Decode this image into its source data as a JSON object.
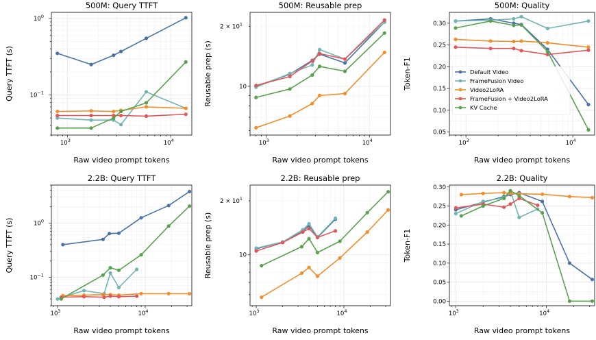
{
  "chart_data": [
    {
      "type": "line",
      "title": "500M: Query TTFT",
      "xlabel": "Raw video prompt tokens",
      "ylabel": "Query TTFT (s)",
      "xscale": "log",
      "yscale": "log",
      "xlim": [
        700,
        16000
      ],
      "ylim": [
        0.03,
        1.2
      ],
      "xticks": [
        {
          "v": 1000,
          "label": "10",
          "exp": "3"
        },
        {
          "v": 10000,
          "label": "10",
          "exp": "4"
        }
      ],
      "yticks": [
        {
          "v": 0.1,
          "label": "10",
          "exp": "−1"
        },
        {
          "v": 1,
          "label": "10",
          "exp": "0"
        }
      ],
      "grid": true,
      "series": [
        {
          "name": "Default Video",
          "color": "#4a72a6",
          "x": [
            800,
            1700,
            2800,
            3300,
            5800,
            14000
          ],
          "y": [
            0.35,
            0.25,
            0.33,
            0.37,
            0.55,
            1.02
          ]
        },
        {
          "name": "FrameFusion Video",
          "color": "#72b4b4",
          "x": [
            800,
            1700,
            2800,
            3300,
            5800,
            14000
          ],
          "y": [
            0.05,
            0.047,
            0.047,
            0.041,
            0.11,
            0.067
          ]
        },
        {
          "name": "Video2LoRA",
          "color": "#f28e2b",
          "x": [
            800,
            1700,
            2800,
            3300,
            5800,
            14000
          ],
          "y": [
            0.061,
            0.062,
            0.061,
            0.063,
            0.07,
            0.067
          ]
        },
        {
          "name": "FrameFusion + Video2LoRA",
          "color": "#e15759",
          "x": [
            800,
            1700,
            2800,
            3300,
            5800,
            14000
          ],
          "y": [
            0.054,
            0.054,
            0.054,
            0.054,
            0.053,
            0.056
          ]
        },
        {
          "name": "KV Cache",
          "color": "#59a14f",
          "x": [
            800,
            1700,
            2800,
            3300,
            5800,
            14000
          ],
          "y": [
            0.037,
            0.037,
            0.05,
            0.061,
            0.079,
            0.27
          ]
        }
      ]
    },
    {
      "type": "line",
      "title": "500M: Reusable prep",
      "xlabel": "Raw video prompt tokens",
      "ylabel": "Reusable prep (s)",
      "xscale": "log",
      "yscale": "log",
      "xlim": [
        700,
        16000
      ],
      "ylim": [
        5.7,
        23.5
      ],
      "xticks": [
        {
          "v": 1000,
          "label": "10",
          "exp": "3"
        },
        {
          "v": 10000,
          "label": "10",
          "exp": "4"
        }
      ],
      "yticks": [
        {
          "v": 10,
          "label": "10",
          "exp": ""
        },
        {
          "v": 20,
          "label": "2 × 10",
          "exp": "1"
        }
      ],
      "grid": true,
      "series": [
        {
          "name": "Default Video",
          "color": "#4a72a6",
          "x": [
            800,
            1700,
            2800,
            3300,
            5800,
            14000
          ],
          "y": [
            10,
            11.5,
            13.5,
            14.5,
            13.1,
            21
          ]
        },
        {
          "name": "FrameFusion Video",
          "color": "#72b4b4",
          "x": [
            800,
            1700,
            2800,
            3300,
            5800,
            14000
          ],
          "y": [
            9.9,
            11.6,
            12.8,
            15.3,
            13.7,
            21
          ]
        },
        {
          "name": "Video2LoRA",
          "color": "#f28e2b",
          "x": [
            800,
            1700,
            2800,
            3300,
            5800,
            14000
          ],
          "y": [
            6.2,
            7.1,
            8.2,
            9.0,
            9.2,
            14.8
          ]
        },
        {
          "name": "FrameFusion + Video2LoRA",
          "color": "#e15759",
          "x": [
            800,
            1700,
            2800,
            3300,
            5800,
            14000
          ],
          "y": [
            10.1,
            11.2,
            13.4,
            14.6,
            13.7,
            21.5
          ]
        },
        {
          "name": "KV Cache",
          "color": "#59a14f",
          "x": [
            800,
            1700,
            2800,
            3300,
            5800,
            14000
          ],
          "y": [
            8.8,
            9.7,
            11.4,
            12.6,
            11.9,
            18.5
          ]
        }
      ]
    },
    {
      "type": "line",
      "title": "500M: Quality",
      "xlabel": "Raw video prompt tokens",
      "ylabel": "Token-F1",
      "xscale": "log",
      "yscale": "linear",
      "xlim": [
        700,
        16000
      ],
      "ylim": [
        0.043,
        0.325
      ],
      "xticks": [
        {
          "v": 1000,
          "label": "10",
          "exp": "3"
        },
        {
          "v": 10000,
          "label": "10",
          "exp": "4"
        }
      ],
      "yticks": [
        {
          "v": 0.05,
          "label": "0.05"
        },
        {
          "v": 0.1,
          "label": "0.10"
        },
        {
          "v": 0.15,
          "label": "0.15"
        },
        {
          "v": 0.2,
          "label": "0.20"
        },
        {
          "v": 0.25,
          "label": "0.25"
        },
        {
          "v": 0.3,
          "label": "0.30"
        }
      ],
      "grid": true,
      "legend": "center-left",
      "series": [
        {
          "name": "Default Video",
          "color": "#4a72a6",
          "x": [
            800,
            1700,
            2800,
            3300,
            5800,
            14000
          ],
          "y": [
            0.305,
            0.31,
            0.3,
            0.297,
            0.24,
            0.113
          ]
        },
        {
          "name": "FrameFusion Video",
          "color": "#72b4b4",
          "x": [
            800,
            1700,
            2800,
            3300,
            5800,
            14000
          ],
          "y": [
            0.305,
            0.307,
            0.31,
            0.315,
            0.288,
            0.305
          ]
        },
        {
          "name": "Video2LoRA",
          "color": "#f28e2b",
          "x": [
            800,
            1700,
            2800,
            3300,
            5800,
            14000
          ],
          "y": [
            0.263,
            0.259,
            0.258,
            0.259,
            0.255,
            0.245
          ]
        },
        {
          "name": "FrameFusion + Video2LoRA",
          "color": "#e15759",
          "x": [
            800,
            1700,
            2800,
            3300,
            5800,
            14000
          ],
          "y": [
            0.245,
            0.242,
            0.242,
            0.237,
            0.228,
            0.238
          ]
        },
        {
          "name": "KV Cache",
          "color": "#59a14f",
          "x": [
            800,
            1700,
            2800,
            3300,
            5800,
            14000
          ],
          "y": [
            0.289,
            0.305,
            0.295,
            0.296,
            0.235,
            0.055
          ]
        }
      ]
    },
    {
      "type": "line",
      "title": "2.2B: Query TTFT",
      "xlabel": "Raw video prompt tokens",
      "ylabel": "Query TTFT (s)",
      "xscale": "log",
      "yscale": "log",
      "xlim": [
        850,
        34000
      ],
      "ylim": [
        0.03,
        5
      ],
      "xticks": [
        {
          "v": 1000,
          "label": "10",
          "exp": "3"
        },
        {
          "v": 10000,
          "label": "10",
          "exp": "4"
        }
      ],
      "yticks": [
        {
          "v": 0.1,
          "label": "10",
          "exp": "−1"
        },
        {
          "v": 1,
          "label": "10",
          "exp": "0"
        }
      ],
      "grid": true,
      "series": [
        {
          "name": "Default Video",
          "color": "#4a72a6",
          "x": [
            1150,
            3300,
            3900,
            5000,
            9000,
            18500,
            32000
          ],
          "y": [
            0.4,
            0.5,
            0.64,
            0.65,
            1.25,
            2.1,
            3.8
          ]
        },
        {
          "name": "FrameFusion Video",
          "color": "#72b4b4",
          "x": [
            1000,
            2000,
            3400,
            4000,
            5000,
            8000
          ],
          "y": [
            0.04,
            0.057,
            0.05,
            0.12,
            0.065,
            0.14
          ]
        },
        {
          "name": "Video2LoRA",
          "color": "#f28e2b",
          "x": [
            1150,
            2000,
            3300,
            4000,
            5000,
            9000,
            18500,
            32000
          ],
          "y": [
            0.046,
            0.047,
            0.048,
            0.048,
            0.047,
            0.05,
            0.05,
            0.05
          ]
        },
        {
          "name": "FrameFusion + Video2LoRA",
          "color": "#e15759",
          "x": [
            1100,
            2000,
            3400,
            4000,
            5000,
            8000
          ],
          "y": [
            0.043,
            0.044,
            0.043,
            0.045,
            0.044,
            0.045
          ]
        },
        {
          "name": "KV Cache",
          "color": "#59a14f",
          "x": [
            1100,
            3300,
            4000,
            5000,
            9000,
            18500,
            32000
          ],
          "y": [
            0.04,
            0.11,
            0.15,
            0.135,
            0.26,
            0.88,
            2.05
          ]
        }
      ]
    },
    {
      "type": "line",
      "title": "2.2B: Reusable prep",
      "xlabel": "Raw video prompt tokens",
      "ylabel": "Reusable prep (s)",
      "xscale": "log",
      "yscale": "log",
      "xlim": [
        850,
        34000
      ],
      "ylim": [
        5.2,
        24.5
      ],
      "xticks": [
        {
          "v": 1000,
          "label": "10",
          "exp": "3"
        },
        {
          "v": 10000,
          "label": "10",
          "exp": "4"
        }
      ],
      "yticks": [
        {
          "v": 10,
          "label": "10",
          "exp": ""
        },
        {
          "v": 20,
          "label": "2 × 10",
          "exp": "1"
        }
      ],
      "grid": true,
      "series": [
        {
          "name": "Default Video",
          "color": "#4a72a6",
          "x": [
            1000,
            2000,
            3400,
            4000,
            5000,
            8000
          ],
          "y": [
            10.8,
            11.8,
            13.5,
            14.6,
            12.5,
            15.8
          ]
        },
        {
          "name": "FrameFusion Video",
          "color": "#72b4b4",
          "x": [
            1000,
            2000,
            3400,
            4000,
            5000,
            8000
          ],
          "y": [
            10.9,
            11.8,
            13.8,
            14.9,
            12.6,
            16.0
          ]
        },
        {
          "name": "Video2LoRA",
          "color": "#f28e2b",
          "x": [
            1150,
            3300,
            4000,
            5000,
            9000,
            18500,
            32000
          ],
          "y": [
            5.8,
            7.9,
            8.5,
            7.6,
            9.6,
            13.4,
            17.8
          ]
        },
        {
          "name": "FrameFusion + Video2LoRA",
          "color": "#e15759",
          "x": [
            1000,
            2000,
            3400,
            4000,
            5000,
            8000
          ],
          "y": [
            10.5,
            11.7,
            13.4,
            14.0,
            12.5,
            13.6
          ]
        },
        {
          "name": "KV Cache",
          "color": "#59a14f",
          "x": [
            1150,
            3300,
            4000,
            5000,
            9000,
            18500,
            32000
          ],
          "y": [
            8.7,
            11.1,
            12.3,
            10.3,
            11.9,
            17.2,
            22.5
          ]
        }
      ]
    },
    {
      "type": "line",
      "title": "2.2B: Quality",
      "xlabel": "Raw video prompt tokens",
      "ylabel": "Token-F1",
      "xscale": "log",
      "yscale": "linear",
      "xlim": [
        850,
        34000
      ],
      "ylim": [
        -0.012,
        0.305
      ],
      "xticks": [
        {
          "v": 1000,
          "label": "10",
          "exp": "3"
        },
        {
          "v": 10000,
          "label": "10",
          "exp": "4"
        }
      ],
      "yticks": [
        {
          "v": 0,
          "label": "0.00"
        },
        {
          "v": 0.05,
          "label": "0.05"
        },
        {
          "v": 0.1,
          "label": "0.10"
        },
        {
          "v": 0.15,
          "label": "0.15"
        },
        {
          "v": 0.2,
          "label": "0.20"
        },
        {
          "v": 0.25,
          "label": "0.25"
        },
        {
          "v": 0.3,
          "label": "0.30"
        }
      ],
      "grid": true,
      "series": [
        {
          "name": "Default Video",
          "color": "#4a72a6",
          "x": [
            1000,
            2000,
            3400,
            4000,
            5000,
            9000,
            18000,
            32000
          ],
          "y": [
            0.24,
            0.26,
            0.275,
            0.28,
            0.285,
            0.262,
            0.1,
            0.057
          ]
        },
        {
          "name": "FrameFusion Video",
          "color": "#72b4b4",
          "x": [
            1000,
            2000,
            3400,
            4000,
            5000,
            8000
          ],
          "y": [
            0.23,
            0.262,
            0.272,
            0.29,
            0.22,
            0.242
          ]
        },
        {
          "name": "Video2LoRA",
          "color": "#f28e2b",
          "x": [
            1150,
            2000,
            3400,
            4000,
            5000,
            9000,
            18000,
            32000
          ],
          "y": [
            0.28,
            0.283,
            0.285,
            0.283,
            0.282,
            0.281,
            0.275,
            0.272
          ]
        },
        {
          "name": "FrameFusion + Video2LoRA",
          "color": "#e15759",
          "x": [
            1000,
            2000,
            3400,
            4000,
            5000,
            8000
          ],
          "y": [
            0.245,
            0.255,
            0.247,
            0.255,
            0.27,
            0.252
          ]
        },
        {
          "name": "KV Cache",
          "color": "#59a14f",
          "x": [
            1150,
            2000,
            3400,
            4000,
            5000,
            9000,
            18000,
            32000
          ],
          "y": [
            0.224,
            0.25,
            0.27,
            0.29,
            0.277,
            0.232,
            0.0,
            0.0
          ]
        }
      ]
    }
  ]
}
